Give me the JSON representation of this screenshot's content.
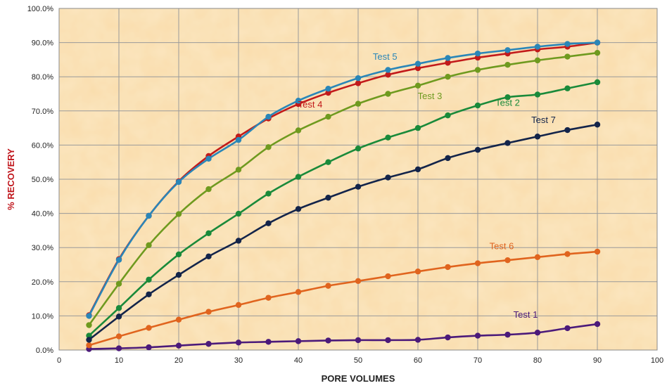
{
  "chart_data": {
    "type": "line",
    "xlabel": "PORE VOLUMES",
    "ylabel": "% RECOVERY",
    "xlim": [
      0,
      100
    ],
    "ylim": [
      0,
      100
    ],
    "x_ticks": [
      "0",
      "10",
      "20",
      "30",
      "40",
      "50",
      "60",
      "70",
      "80",
      "90",
      "100"
    ],
    "y_ticks": [
      "0.0%",
      "10.0%",
      "20.0%",
      "30.0%",
      "40.0%",
      "50.0%",
      "60.0%",
      "70.0%",
      "80.0%",
      "90.0%",
      "100.0%"
    ],
    "grid": true,
    "background": "parchment texture",
    "x": [
      5,
      10,
      15,
      20,
      25,
      30,
      35,
      40,
      45,
      50,
      55,
      60,
      65,
      70,
      75,
      80,
      85,
      90
    ],
    "series": [
      {
        "name": "Test 1",
        "color": "#4b1a7a",
        "label_x": 78,
        "label_y": 9.5,
        "values": [
          0.3,
          0.5,
          0.8,
          1.3,
          1.8,
          2.2,
          2.4,
          2.6,
          2.8,
          2.9,
          2.9,
          3.0,
          3.7,
          4.2,
          4.5,
          5.1,
          6.4,
          7.6
        ]
      },
      {
        "name": "Test 2",
        "color": "#1a8a3a",
        "label_x": 75,
        "label_y": 71.5,
        "values": [
          4.2,
          12.3,
          20.6,
          28.0,
          34.2,
          39.9,
          45.8,
          50.7,
          55.0,
          59.0,
          62.2,
          65.0,
          68.7,
          71.6,
          74.0,
          74.8,
          76.6,
          78.4
        ]
      },
      {
        "name": "Test 3",
        "color": "#6f9a1f",
        "label_x": 62,
        "label_y": 73.5,
        "values": [
          7.3,
          19.4,
          30.7,
          39.8,
          47.1,
          52.8,
          59.4,
          64.3,
          68.3,
          72.1,
          75.0,
          77.4,
          80.0,
          82.0,
          83.5,
          84.8,
          85.9,
          87.0
        ]
      },
      {
        "name": "Test 4",
        "color": "#c21a1a",
        "label_x": 42,
        "label_y": 71,
        "values": [
          10.2,
          26.6,
          39.3,
          49.4,
          56.8,
          62.5,
          67.8,
          72.0,
          75.3,
          78.1,
          80.6,
          82.5,
          84.1,
          85.6,
          86.8,
          88.0,
          88.8,
          90.0
        ]
      },
      {
        "name": "Test 5",
        "color": "#2a86b8",
        "label_x": 54.5,
        "label_y": 85,
        "values": [
          10.0,
          26.4,
          39.3,
          49.2,
          56.0,
          61.5,
          68.3,
          73.0,
          76.5,
          79.6,
          82.0,
          83.8,
          85.5,
          86.8,
          87.8,
          88.8,
          89.6,
          90.0
        ]
      },
      {
        "name": "Test 6",
        "color": "#e0641e",
        "label_x": 74,
        "label_y": 29.5,
        "values": [
          1.4,
          4.0,
          6.5,
          8.9,
          11.2,
          13.2,
          15.3,
          17.0,
          18.8,
          20.2,
          21.6,
          23.0,
          24.3,
          25.4,
          26.3,
          27.2,
          28.1,
          28.8
        ]
      },
      {
        "name": "Test 7",
        "color": "#13244a",
        "label_x": 81,
        "label_y": 66.5,
        "values": [
          3.0,
          9.8,
          16.3,
          22.0,
          27.4,
          32.0,
          37.1,
          41.3,
          44.6,
          47.8,
          50.5,
          52.9,
          56.2,
          58.6,
          60.6,
          62.5,
          64.4,
          66.0
        ]
      }
    ]
  },
  "style": {
    "axis_title_color_x": "#222222",
    "axis_title_color_y": "#c0151b",
    "grid_color": "#9a9a9a",
    "plot_bg_light": "#fbe6c0",
    "plot_bg_dark": "#f1cf94"
  }
}
